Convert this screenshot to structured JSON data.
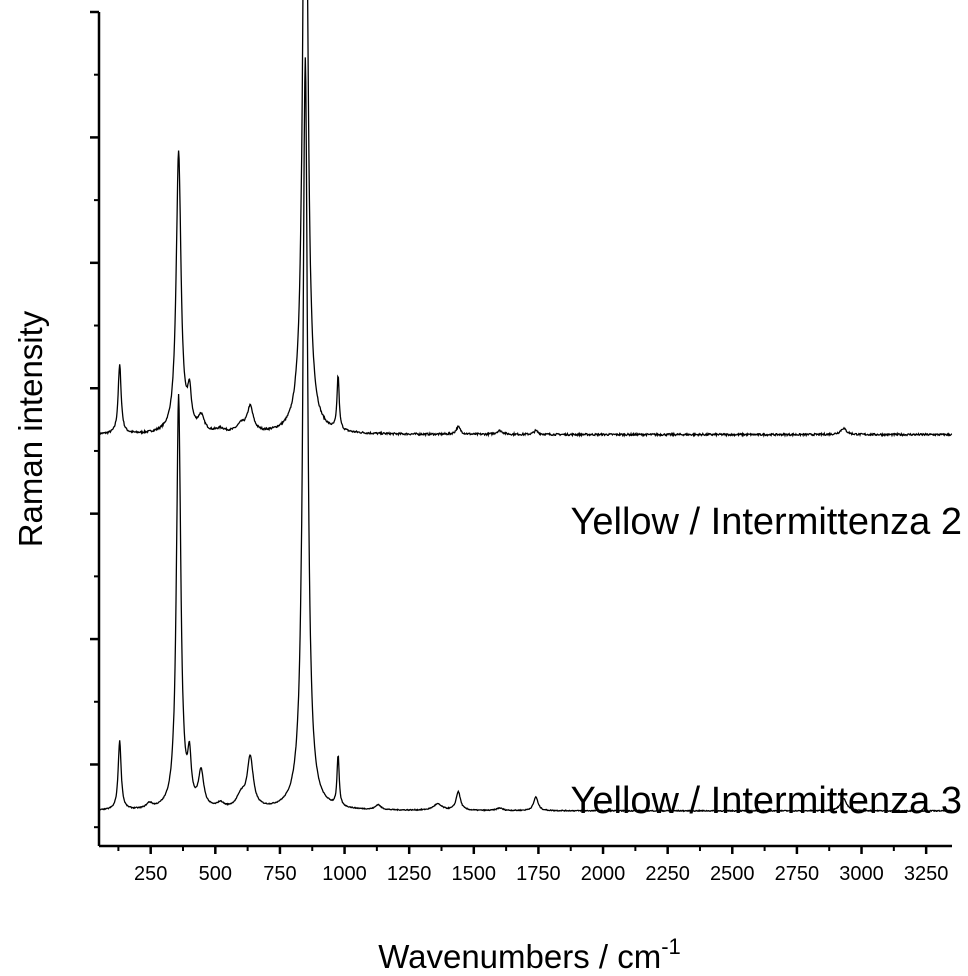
{
  "chart_data": {
    "type": "line",
    "title": "",
    "xlabel": "Wavenumbers / cm",
    "xlabel_superscript": "-1",
    "ylabel": "Raman intensity",
    "xlim": [
      50,
      3350
    ],
    "ylim": [
      -0.15,
      6.5
    ],
    "x_ticks": [
      250,
      500,
      750,
      1000,
      1250,
      1500,
      1750,
      2000,
      2250,
      2500,
      2750,
      3000,
      3250
    ],
    "x_tick_labels": [
      "250",
      "500",
      "750",
      "1000",
      "1250",
      "1500",
      "1750",
      "2000",
      "2250",
      "2500",
      "2750",
      "3000",
      "3250"
    ],
    "y_major_ticks": [
      0.5,
      1.5,
      2.5,
      3.5,
      4.5,
      5.5,
      6.5
    ],
    "y_minor_ticks": [
      0,
      1,
      2,
      3,
      4,
      5,
      6
    ],
    "y_tick_labels_shown": false,
    "grid": false,
    "legend": "none",
    "series": [
      {
        "name": "Yellow / Intermittenza 2",
        "offset": 3.13,
        "noise": 0.008,
        "peaks": [
          {
            "x": 130,
            "h": 0.55,
            "w": 7
          },
          {
            "x": 358,
            "h": 2.25,
            "w": 11
          },
          {
            "x": 400,
            "h": 0.28,
            "w": 9
          },
          {
            "x": 445,
            "h": 0.12,
            "w": 14
          },
          {
            "x": 520,
            "h": 0.03,
            "w": 20
          },
          {
            "x": 600,
            "h": 0.06,
            "w": 20
          },
          {
            "x": 635,
            "h": 0.2,
            "w": 14
          },
          {
            "x": 848,
            "h": 5.85,
            "w": 11
          },
          {
            "x": 975,
            "h": 0.43,
            "w": 5
          },
          {
            "x": 1440,
            "h": 0.06,
            "w": 10
          },
          {
            "x": 1600,
            "h": 0.03,
            "w": 14
          },
          {
            "x": 1740,
            "h": 0.03,
            "w": 10
          },
          {
            "x": 2930,
            "h": 0.05,
            "w": 14
          }
        ]
      },
      {
        "name": "Yellow / Intermittenza 3",
        "offset": 0.13,
        "noise": 0.004,
        "peaks": [
          {
            "x": 130,
            "h": 0.55,
            "w": 7
          },
          {
            "x": 245,
            "h": 0.04,
            "w": 14
          },
          {
            "x": 358,
            "h": 3.3,
            "w": 10
          },
          {
            "x": 400,
            "h": 0.35,
            "w": 8
          },
          {
            "x": 445,
            "h": 0.28,
            "w": 12
          },
          {
            "x": 520,
            "h": 0.04,
            "w": 15
          },
          {
            "x": 600,
            "h": 0.1,
            "w": 20
          },
          {
            "x": 635,
            "h": 0.4,
            "w": 14
          },
          {
            "x": 848,
            "h": 6.0,
            "w": 11
          },
          {
            "x": 975,
            "h": 0.4,
            "w": 5
          },
          {
            "x": 1130,
            "h": 0.04,
            "w": 12
          },
          {
            "x": 1360,
            "h": 0.05,
            "w": 20
          },
          {
            "x": 1440,
            "h": 0.15,
            "w": 10
          },
          {
            "x": 1600,
            "h": 0.02,
            "w": 14
          },
          {
            "x": 1740,
            "h": 0.11,
            "w": 10
          },
          {
            "x": 2930,
            "h": 0.1,
            "w": 14
          }
        ]
      }
    ]
  }
}
